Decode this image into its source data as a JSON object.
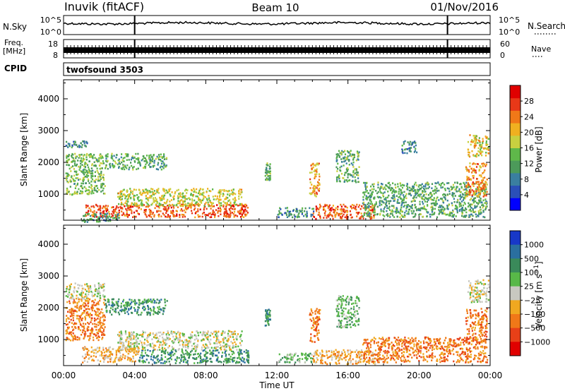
{
  "header": {
    "radar": "Inuvik (fitACF)",
    "beam": "Beam 10",
    "date": "01/Nov/2016"
  },
  "params": {
    "nsky": {
      "label": "N.Sky",
      "ticks": [
        "10^5",
        "10^0"
      ]
    },
    "nsearch": {
      "label": "N.Search",
      "ticks": [
        "10^5",
        "10^0"
      ]
    },
    "freq": {
      "label": "Freq.",
      "unit": "[MHz]",
      "ticks": [
        "18",
        "8"
      ]
    },
    "nave": {
      "label": "Nave",
      "ticks": [
        "60",
        "0"
      ]
    },
    "cpid": {
      "label": "CPID",
      "value": "twofsound 3503"
    },
    "markers_hours": [
      4.0,
      21.6
    ]
  },
  "chart_data": [
    {
      "type": "heatmap",
      "name": "power-panel",
      "ylabel": "Slant Range [km]",
      "xlabel": "",
      "x_range_hours": [
        0,
        24
      ],
      "ylim": [
        180,
        4600
      ],
      "y_ticks": [
        1000,
        2000,
        3000,
        4000
      ],
      "colorbar": {
        "label": "Power [dB]",
        "range": [
          0,
          32
        ],
        "ticks": [
          "4",
          "8",
          "12",
          "16",
          "20",
          "24",
          "28"
        ],
        "colors": [
          "#0000ff",
          "#2a4fb8",
          "#3a7fa0",
          "#4c9a5a",
          "#5fb84a",
          "#c8d040",
          "#f0b020",
          "#f07818",
          "#e83818",
          "#e00000"
        ]
      },
      "regions": [
        {
          "x": [
            0.1,
            2.3
          ],
          "y": [
            1000,
            2300
          ],
          "v": 14
        },
        {
          "x": [
            0.1,
            1.3
          ],
          "y": [
            2500,
            2700
          ],
          "v": 8
        },
        {
          "x": [
            2.3,
            5.8
          ],
          "y": [
            1800,
            2300
          ],
          "v": 12
        },
        {
          "x": [
            1.2,
            10.4
          ],
          "y": [
            300,
            700
          ],
          "v": 27
        },
        {
          "x": [
            3.0,
            10.0
          ],
          "y": [
            650,
            1200
          ],
          "v": 18
        },
        {
          "x": [
            1.0,
            3.2
          ],
          "y": [
            150,
            420
          ],
          "v": 10
        },
        {
          "x": [
            11.3,
            11.6
          ],
          "y": [
            1450,
            2000
          ],
          "v": 13
        },
        {
          "x": [
            12.0,
            14.1
          ],
          "y": [
            300,
            600
          ],
          "v": 9
        },
        {
          "x": [
            13.8,
            14.4
          ],
          "y": [
            950,
            2000
          ],
          "v": 22
        },
        {
          "x": [
            14.0,
            17.5
          ],
          "y": [
            250,
            700
          ],
          "v": 27
        },
        {
          "x": [
            15.3,
            16.6
          ],
          "y": [
            1400,
            2400
          ],
          "v": 12
        },
        {
          "x": [
            16.8,
            23.8
          ],
          "y": [
            300,
            1400
          ],
          "v": 12
        },
        {
          "x": [
            22.6,
            23.8
          ],
          "y": [
            950,
            2000
          ],
          "v": 24
        },
        {
          "x": [
            22.7,
            23.9
          ],
          "y": [
            2200,
            2900
          ],
          "v": 20
        },
        {
          "x": [
            19.0,
            19.9
          ],
          "y": [
            2300,
            2700
          ],
          "v": 8
        }
      ]
    },
    {
      "type": "heatmap",
      "name": "velocity-panel",
      "ylabel": "Slant Range [km]",
      "xlabel": "Time UT",
      "x_range_hours": [
        0,
        24
      ],
      "x_ticks": [
        "00:00",
        "04:00",
        "08:00",
        "12:00",
        "16:00",
        "20:00",
        "00:00"
      ],
      "ylim": [
        180,
        4600
      ],
      "y_ticks": [
        1000,
        2000,
        3000,
        4000
      ],
      "colorbar": {
        "label": "Velocity [m s^-1]",
        "ticks": [
          "1000",
          "500",
          "100",
          "25",
          "−25",
          "−100",
          "−500",
          "−1000"
        ],
        "colors": [
          "#1838c8",
          "#2a6fa0",
          "#3a8a5a",
          "#58b848",
          "#c8c8c0",
          "#f0a820",
          "#f07818",
          "#e84018",
          "#e00000"
        ]
      },
      "regions": [
        {
          "x": [
            0.1,
            2.3
          ],
          "y": [
            1000,
            2300
          ],
          "v": 6
        },
        {
          "x": [
            0.1,
            2.3
          ],
          "y": [
            2300,
            2800
          ],
          "v": 4
        },
        {
          "x": [
            2.3,
            5.8
          ],
          "y": [
            1800,
            2300
          ],
          "v": 2
        },
        {
          "x": [
            1.0,
            4.2
          ],
          "y": [
            300,
            800
          ],
          "v": 5
        },
        {
          "x": [
            4.2,
            10.4
          ],
          "y": [
            280,
            700
          ],
          "v": 2
        },
        {
          "x": [
            3.0,
            10.0
          ],
          "y": [
            700,
            1300
          ],
          "v": 4
        },
        {
          "x": [
            11.3,
            11.6
          ],
          "y": [
            1450,
            2000
          ],
          "v": 2
        },
        {
          "x": [
            12.0,
            14.1
          ],
          "y": [
            300,
            600
          ],
          "v": 3
        },
        {
          "x": [
            13.8,
            14.4
          ],
          "y": [
            950,
            2000
          ],
          "v": 6
        },
        {
          "x": [
            14.0,
            17.5
          ],
          "y": [
            250,
            700
          ],
          "v": 5
        },
        {
          "x": [
            15.3,
            16.6
          ],
          "y": [
            1400,
            2400
          ],
          "v": 3
        },
        {
          "x": [
            16.8,
            23.8
          ],
          "y": [
            300,
            1100
          ],
          "v": 6
        },
        {
          "x": [
            22.6,
            23.8
          ],
          "y": [
            950,
            2000
          ],
          "v": 6
        },
        {
          "x": [
            22.7,
            23.9
          ],
          "y": [
            2200,
            2900
          ],
          "v": 4
        }
      ]
    }
  ]
}
